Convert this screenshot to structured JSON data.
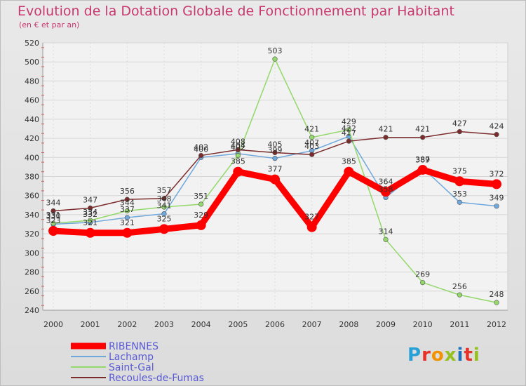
{
  "title": "Evolution de la Dotation Globale de Fonctionnement par Habitant",
  "subtitle": "(en € et par an)",
  "logo": {
    "text": "Proxiti",
    "colors": [
      "#2aa0d8",
      "#e6332a",
      "#f39200",
      "#95c11f",
      "#1d71b8",
      "#e6332a",
      "#95c11f"
    ]
  },
  "chart_data": {
    "type": "line",
    "title": "Evolution de la Dotation Globale de Fonctionnement par Habitant",
    "ylabel": "(en € et par an)",
    "xlabel": "",
    "ylim": [
      240,
      520
    ],
    "yticks": [
      240,
      260,
      280,
      300,
      320,
      340,
      360,
      380,
      400,
      420,
      440,
      460,
      480,
      500,
      520
    ],
    "x": [
      "2000",
      "2001",
      "2002",
      "2003",
      "2004",
      "2005",
      "2006",
      "2007",
      "2008",
      "2009",
      "2010",
      "2011",
      "2012"
    ],
    "grid": true,
    "legend": "bottom-left",
    "series": [
      {
        "name": "RIBENNES",
        "color": "#ff0000",
        "highlight": true,
        "values": [
          323,
          321,
          321,
          325,
          329,
          385,
          377,
          327,
          385,
          364,
          387,
          375,
          372
        ]
      },
      {
        "name": "Lachamp",
        "color": "#6fa8dc",
        "values": [
          330,
          332,
          337,
          341,
          400,
          404,
          399,
          407,
          422,
          358,
          389,
          353,
          349
        ]
      },
      {
        "name": "Saint-Gal",
        "color": "#93d86a",
        "values": [
          331,
          334,
          344,
          348,
          351,
          402,
          503,
          421,
          429,
          314,
          269,
          256,
          248
        ]
      },
      {
        "name": "Recoules-de-Fumas",
        "color": "#7b2b2b",
        "values": [
          344,
          347,
          356,
          357,
          402,
          408,
          405,
          403,
          417,
          421,
          421,
          427,
          424
        ]
      }
    ]
  }
}
